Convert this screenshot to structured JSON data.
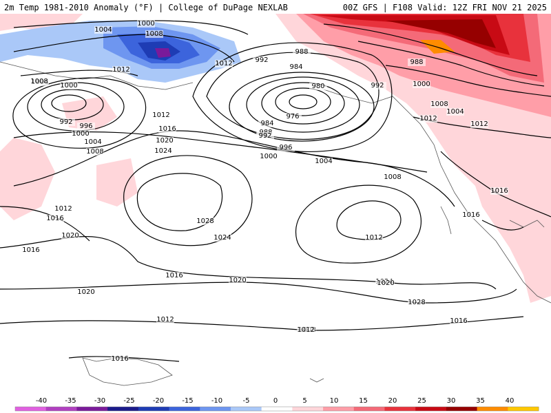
{
  "header": {
    "left_title": "2m Temp 1981-2010 Anomaly (°F) | College of DuPage NEXLAB",
    "right_title": "00Z GFS | F108 Valid: 12Z FRI NOV 21 2025"
  },
  "colorbar": {
    "ticks": [
      "-40",
      "-35",
      "-30",
      "-25",
      "-20",
      "-15",
      "-10",
      "-5",
      "0",
      "5",
      "10",
      "15",
      "20",
      "25",
      "30",
      "35",
      "40"
    ],
    "colors": [
      "#e060e0",
      "#b040c0",
      "#7a1a9a",
      "#1a1a8a",
      "#1e3cb4",
      "#3c64dc",
      "#6e96f0",
      "#aac8f8",
      "#ffffff",
      "#ffd6da",
      "#ff9ea8",
      "#f46a78",
      "#e8323c",
      "#c80a14",
      "#960000",
      "#ff8c00",
      "#ffc800"
    ]
  },
  "isobars": {
    "labels": [
      "1000",
      "1004",
      "1008",
      "1012",
      "1004",
      "1000",
      "992",
      "996",
      "1000",
      "1004",
      "1008",
      "1012",
      "1016",
      "1020",
      "1024",
      "1028",
      "1024",
      "1012",
      "1016",
      "1020",
      "1016",
      "1012",
      "1008",
      "992",
      "988",
      "984",
      "980",
      "976",
      "984",
      "988",
      "992",
      "996",
      "1000",
      "1004",
      "1008",
      "1012",
      "1016",
      "1020",
      "1024",
      "1028",
      "1020",
      "1016",
      "1012",
      "1008",
      "1000",
      "1004",
      "1012",
      "1016",
      "1016",
      "1020",
      "1016",
      "1012",
      "1012",
      "1008",
      "992",
      "988"
    ]
  }
}
